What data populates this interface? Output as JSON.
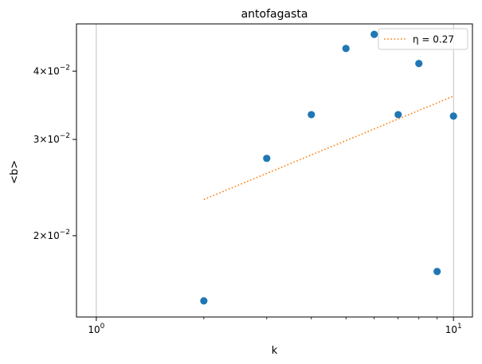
{
  "chart_data": {
    "type": "scatter",
    "title": "antofagasta",
    "xlabel": "k",
    "ylabel": "<b>",
    "x_scale": "log",
    "y_scale": "log",
    "xlim": [
      0.88,
      11.3
    ],
    "ylim": [
      0.0142,
      0.0488
    ],
    "x_ticks": [
      {
        "value": 1,
        "base": "10",
        "exp": "0"
      },
      {
        "value": 10,
        "base": "10",
        "exp": "1"
      }
    ],
    "y_ticks": [
      {
        "value": 0.02,
        "mant": "2",
        "base": "10",
        "exp": "−2"
      },
      {
        "value": 0.03,
        "mant": "3",
        "base": "10",
        "exp": "−2"
      },
      {
        "value": 0.04,
        "mant": "4",
        "base": "10",
        "exp": "−2"
      }
    ],
    "grid": "vertical major lines",
    "legend_position": "top-right",
    "points": {
      "color": "#1f77b4",
      "x": [
        2,
        3,
        4,
        5,
        6,
        7,
        8,
        9,
        10
      ],
      "y": [
        0.0152,
        0.0277,
        0.0333,
        0.044,
        0.0467,
        0.0333,
        0.0413,
        0.0172,
        0.0331
      ]
    },
    "fit": {
      "name": "η = 0.27",
      "color": "#ff7f0e",
      "style": "dotted",
      "x": [
        2,
        10
      ],
      "y": [
        0.0233,
        0.036
      ]
    }
  }
}
